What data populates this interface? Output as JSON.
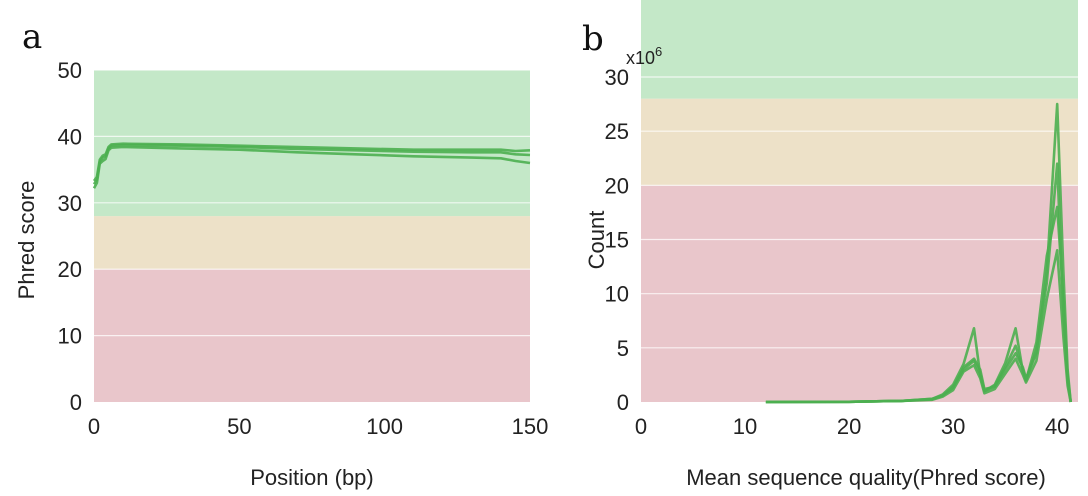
{
  "chart_data": [
    {
      "panel": "a",
      "type": "line",
      "xlabel": "Position (bp)",
      "ylabel": "Phred score",
      "xlim": [
        0,
        150
      ],
      "ylim": [
        0,
        50
      ],
      "xticks": [
        0,
        50,
        100,
        150
      ],
      "yticks": [
        0,
        10,
        20,
        30,
        40,
        50
      ],
      "grid": true,
      "bands": [
        {
          "from": 0,
          "to": 20,
          "color": "#e9c6cb"
        },
        {
          "from": 20,
          "to": 28,
          "color": "#ede1c8"
        },
        {
          "from": 28,
          "to": 50,
          "color": "#c4e8c8"
        }
      ],
      "line_color": "#4caf50",
      "series": [
        {
          "x": [
            0,
            1,
            2,
            3,
            4,
            5,
            6,
            10,
            30,
            50,
            70,
            90,
            110,
            130,
            140,
            145,
            150
          ],
          "y": [
            32.8,
            33.5,
            36.2,
            36.8,
            37.0,
            38.2,
            38.6,
            38.7,
            38.6,
            38.4,
            38.1,
            37.9,
            37.7,
            37.6,
            37.6,
            37.3,
            37.2
          ]
        },
        {
          "x": [
            0,
            1,
            2,
            3,
            4,
            5,
            6,
            10,
            30,
            50,
            70,
            90,
            110,
            130,
            140,
            145,
            150
          ],
          "y": [
            32.2,
            33.0,
            35.9,
            36.3,
            36.6,
            37.9,
            38.3,
            38.4,
            38.2,
            38.0,
            37.6,
            37.3,
            37.0,
            36.8,
            36.7,
            36.3,
            36.0
          ]
        },
        {
          "x": [
            0,
            1,
            2,
            3,
            4,
            5,
            6,
            10,
            30,
            50,
            70,
            90,
            110,
            130,
            140,
            145,
            150
          ],
          "y": [
            33.3,
            33.9,
            36.5,
            37.1,
            37.3,
            38.4,
            38.8,
            38.9,
            38.8,
            38.6,
            38.4,
            38.2,
            38.0,
            38.0,
            38.0,
            37.8,
            37.9
          ]
        }
      ]
    },
    {
      "panel": "b",
      "type": "line",
      "xlabel": "Mean sequence quality(Phred score)",
      "ylabel": "Count",
      "multiplier": "x10",
      "multiplier_exp": "6",
      "xlim": [
        0,
        42
      ],
      "ylim": [
        0,
        30
      ],
      "xticks": [
        0,
        10,
        20,
        30,
        40
      ],
      "yticks": [
        0,
        5,
        10,
        15,
        20,
        25,
        30
      ],
      "grid": true,
      "bands": [
        {
          "from": 0,
          "to": 20,
          "color": "#e9c6cb"
        },
        {
          "from": 20,
          "to": 28,
          "color": "#ede1c8"
        },
        {
          "from": 28,
          "to": 42,
          "color": "#c4e8c8"
        }
      ],
      "line_color": "#4caf50",
      "series": [
        {
          "x": [
            12,
            20,
            25,
            28,
            29,
            30,
            31,
            32,
            32.6,
            33,
            34,
            35,
            36,
            36.7,
            37,
            38,
            39,
            40,
            40.6,
            41,
            41.3
          ],
          "y": [
            0,
            0.02,
            0.1,
            0.3,
            0.6,
            1.3,
            3.2,
            4.0,
            3.0,
            1.2,
            1.4,
            3.0,
            4.5,
            3.2,
            2.2,
            4.5,
            12.0,
            27.5,
            12.0,
            3.0,
            0
          ]
        },
        {
          "x": [
            12,
            20,
            25,
            28,
            29,
            30,
            31,
            32,
            32.6,
            33,
            34,
            35,
            36,
            36.7,
            37,
            38,
            39,
            40,
            40.6,
            41,
            41.3
          ],
          "y": [
            0,
            0.02,
            0.1,
            0.3,
            0.7,
            1.6,
            3.5,
            6.8,
            2.5,
            1.0,
            1.6,
            3.6,
            6.8,
            2.8,
            2.0,
            5.5,
            13.5,
            18.0,
            9.5,
            2.5,
            0
          ]
        },
        {
          "x": [
            12,
            20,
            25,
            28,
            29,
            30,
            31,
            32,
            32.6,
            33,
            34,
            35,
            36,
            36.7,
            37,
            38,
            39,
            40,
            40.6,
            41,
            41.3
          ],
          "y": [
            0,
            0.02,
            0.1,
            0.2,
            0.5,
            1.1,
            2.8,
            3.4,
            2.2,
            0.8,
            1.2,
            2.6,
            4.0,
            2.5,
            1.8,
            3.8,
            9.5,
            14.0,
            6.0,
            1.5,
            0
          ]
        },
        {
          "x": [
            12,
            20,
            25,
            28,
            29,
            30,
            31,
            32,
            32.6,
            33,
            34,
            35,
            36,
            36.7,
            37,
            38,
            39,
            40,
            40.6,
            41,
            41.3
          ],
          "y": [
            0,
            0.02,
            0.1,
            0.25,
            0.6,
            1.4,
            3.0,
            3.8,
            2.6,
            1.0,
            1.5,
            3.2,
            5.2,
            3.0,
            2.0,
            4.8,
            11.0,
            22.0,
            8.0,
            2.0,
            0
          ]
        }
      ]
    }
  ]
}
